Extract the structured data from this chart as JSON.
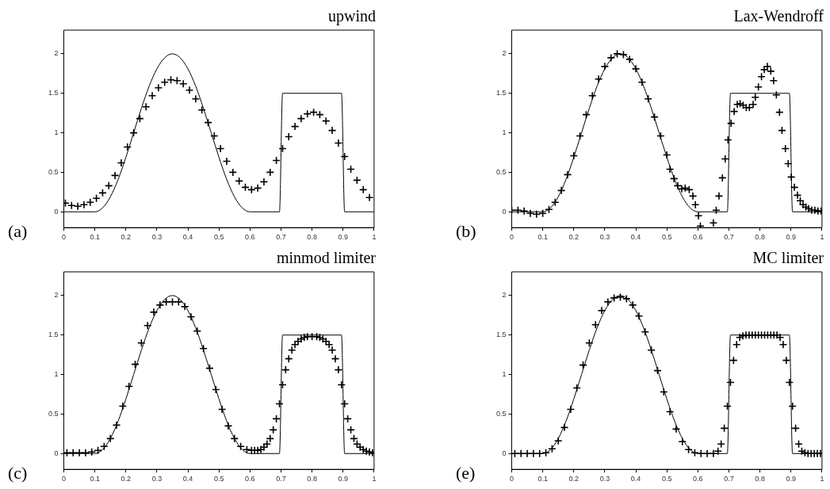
{
  "chart_data": [
    {
      "type": "scatter",
      "title": "upwind",
      "annotations": [
        "(a)"
      ],
      "xlim": [
        0,
        1
      ],
      "ylim": [
        -0.2,
        2.3
      ],
      "xticks": [
        0,
        0.1,
        0.2,
        0.3,
        0.4,
        0.5,
        0.6,
        0.7,
        0.8,
        0.9,
        1
      ],
      "yticks": [
        0,
        0.5,
        1,
        1.5,
        2
      ],
      "series": [
        {
          "type": "line",
          "marker": "none",
          "color": "#000000",
          "x": [
            0,
            0.1,
            0.125,
            0.15,
            0.175,
            0.2,
            0.225,
            0.25,
            0.275,
            0.3,
            0.325,
            0.35,
            0.375,
            0.4,
            0.425,
            0.45,
            0.475,
            0.5,
            0.525,
            0.55,
            0.575,
            0.6,
            0.695,
            0.705,
            0.895,
            0.905,
            1
          ],
          "values": [
            0,
            0,
            0.05,
            0.19,
            0.41,
            0.69,
            1.0,
            1.31,
            1.59,
            1.81,
            1.95,
            2.0,
            1.95,
            1.81,
            1.59,
            1.31,
            1.0,
            0.69,
            0.41,
            0.19,
            0.05,
            0,
            0,
            1.5,
            1.5,
            0,
            0
          ]
        },
        {
          "type": "scatter",
          "marker": "cross",
          "color": "#000000",
          "x": [
            0.005,
            0.025,
            0.045,
            0.065,
            0.085,
            0.105,
            0.125,
            0.145,
            0.165,
            0.185,
            0.205,
            0.225,
            0.245,
            0.265,
            0.285,
            0.305,
            0.325,
            0.345,
            0.365,
            0.385,
            0.405,
            0.425,
            0.445,
            0.465,
            0.485,
            0.505,
            0.525,
            0.545,
            0.565,
            0.585,
            0.605,
            0.625,
            0.645,
            0.665,
            0.685,
            0.705,
            0.725,
            0.745,
            0.765,
            0.785,
            0.805,
            0.825,
            0.845,
            0.865,
            0.885,
            0.905,
            0.925,
            0.945,
            0.965,
            0.985
          ],
          "values": [
            0.11,
            0.08,
            0.07,
            0.09,
            0.12,
            0.17,
            0.24,
            0.33,
            0.46,
            0.62,
            0.82,
            1.0,
            1.18,
            1.33,
            1.47,
            1.57,
            1.64,
            1.67,
            1.66,
            1.62,
            1.54,
            1.43,
            1.29,
            1.13,
            0.96,
            0.8,
            0.64,
            0.5,
            0.39,
            0.31,
            0.28,
            0.3,
            0.38,
            0.5,
            0.65,
            0.8,
            0.95,
            1.08,
            1.18,
            1.24,
            1.26,
            1.23,
            1.15,
            1.03,
            0.87,
            0.7,
            0.54,
            0.4,
            0.28,
            0.18
          ]
        }
      ]
    },
    {
      "type": "scatter",
      "title": "Lax-Wendroff",
      "annotations": [
        "(b)"
      ],
      "xlim": [
        0,
        1
      ],
      "ylim": [
        -0.2,
        2.3
      ],
      "xticks": [
        0,
        0.1,
        0.2,
        0.3,
        0.4,
        0.5,
        0.6,
        0.7,
        0.8,
        0.9,
        1
      ],
      "yticks": [
        0,
        0.5,
        1,
        1.5,
        2
      ],
      "series": [
        {
          "type": "line",
          "marker": "none",
          "color": "#000000",
          "x": [
            0,
            0.1,
            0.125,
            0.15,
            0.175,
            0.2,
            0.225,
            0.25,
            0.275,
            0.3,
            0.325,
            0.35,
            0.375,
            0.4,
            0.425,
            0.45,
            0.475,
            0.5,
            0.525,
            0.55,
            0.575,
            0.6,
            0.695,
            0.705,
            0.895,
            0.905,
            1
          ],
          "values": [
            0,
            0,
            0.05,
            0.19,
            0.41,
            0.69,
            1.0,
            1.31,
            1.59,
            1.81,
            1.95,
            2.0,
            1.95,
            1.81,
            1.59,
            1.31,
            1.0,
            0.69,
            0.41,
            0.19,
            0.05,
            0,
            0,
            1.5,
            1.5,
            0,
            0
          ]
        },
        {
          "type": "scatter",
          "marker": "cross",
          "color": "#000000",
          "x": [
            0,
            0.02,
            0.04,
            0.06,
            0.08,
            0.1,
            0.12,
            0.14,
            0.16,
            0.18,
            0.2,
            0.22,
            0.24,
            0.26,
            0.28,
            0.3,
            0.32,
            0.34,
            0.36,
            0.38,
            0.4,
            0.42,
            0.44,
            0.46,
            0.48,
            0.5,
            0.51,
            0.523,
            0.535,
            0.548,
            0.559,
            0.572,
            0.584,
            0.592,
            0.602,
            0.608,
            0.65,
            0.659,
            0.668,
            0.679,
            0.688,
            0.697,
            0.707,
            0.717,
            0.727,
            0.736,
            0.746,
            0.756,
            0.766,
            0.778,
            0.785,
            0.795,
            0.805,
            0.814,
            0.824,
            0.835,
            0.844,
            0.853,
            0.863,
            0.871,
            0.882,
            0.891,
            0.901,
            0.911,
            0.921,
            0.93,
            0.939,
            0.948,
            0.957,
            0.967,
            0.977,
            0.987,
            0.997
          ],
          "values": [
            0.02,
            0.02,
            0.01,
            -0.02,
            -0.03,
            -0.02,
            0.03,
            0.12,
            0.27,
            0.47,
            0.71,
            0.96,
            1.23,
            1.47,
            1.68,
            1.84,
            1.95,
            2.0,
            1.99,
            1.93,
            1.81,
            1.64,
            1.43,
            1.2,
            0.96,
            0.72,
            0.54,
            0.42,
            0.33,
            0.29,
            0.3,
            0.28,
            0.2,
            0.09,
            -0.05,
            -0.18,
            -0.14,
            0.02,
            0.2,
            0.43,
            0.67,
            0.91,
            1.12,
            1.27,
            1.36,
            1.37,
            1.35,
            1.32,
            1.32,
            1.36,
            1.45,
            1.58,
            1.71,
            1.8,
            1.84,
            1.78,
            1.66,
            1.48,
            1.26,
            1.03,
            0.8,
            0.61,
            0.44,
            0.31,
            0.21,
            0.14,
            0.09,
            0.06,
            0.04,
            0.02,
            0.02,
            0.01,
            0.01
          ]
        }
      ]
    },
    {
      "type": "scatter",
      "title": "minmod limiter",
      "annotations": [
        "(c)"
      ],
      "xlim": [
        0,
        1
      ],
      "ylim": [
        -0.2,
        2.3
      ],
      "xticks": [
        0,
        0.1,
        0.2,
        0.3,
        0.4,
        0.5,
        0.6,
        0.7,
        0.8,
        0.9,
        1
      ],
      "yticks": [
        0,
        0.5,
        1,
        1.5,
        2
      ],
      "series": [
        {
          "type": "line",
          "marker": "none",
          "color": "#000000",
          "x": [
            0,
            0.1,
            0.125,
            0.15,
            0.175,
            0.2,
            0.225,
            0.25,
            0.275,
            0.3,
            0.325,
            0.35,
            0.375,
            0.4,
            0.425,
            0.45,
            0.475,
            0.5,
            0.525,
            0.55,
            0.575,
            0.6,
            0.695,
            0.705,
            0.895,
            0.905,
            1
          ],
          "values": [
            0,
            0,
            0.05,
            0.19,
            0.41,
            0.69,
            1.0,
            1.31,
            1.59,
            1.81,
            1.95,
            2.0,
            1.95,
            1.81,
            1.59,
            1.31,
            1.0,
            0.69,
            0.41,
            0.19,
            0.05,
            0,
            0,
            1.5,
            1.5,
            0,
            0
          ]
        },
        {
          "type": "scatter",
          "marker": "cross",
          "color": "#000000",
          "x": [
            0.01,
            0.03,
            0.05,
            0.07,
            0.09,
            0.11,
            0.13,
            0.15,
            0.17,
            0.19,
            0.21,
            0.23,
            0.25,
            0.27,
            0.29,
            0.31,
            0.33,
            0.35,
            0.37,
            0.39,
            0.41,
            0.43,
            0.45,
            0.47,
            0.49,
            0.51,
            0.53,
            0.55,
            0.57,
            0.59,
            0.605,
            0.615,
            0.625,
            0.635,
            0.645,
            0.655,
            0.665,
            0.675,
            0.685,
            0.695,
            0.705,
            0.715,
            0.725,
            0.735,
            0.745,
            0.755,
            0.765,
            0.775,
            0.785,
            0.8,
            0.815,
            0.825,
            0.835,
            0.845,
            0.855,
            0.865,
            0.875,
            0.885,
            0.895,
            0.905,
            0.915,
            0.925,
            0.935,
            0.945,
            0.955,
            0.965,
            0.975,
            0.985,
            0.995
          ],
          "values": [
            0.01,
            0.01,
            0.01,
            0.01,
            0.02,
            0.04,
            0.09,
            0.19,
            0.36,
            0.6,
            0.85,
            1.13,
            1.4,
            1.62,
            1.79,
            1.88,
            1.92,
            1.92,
            1.92,
            1.86,
            1.73,
            1.55,
            1.33,
            1.08,
            0.81,
            0.56,
            0.35,
            0.19,
            0.09,
            0.05,
            0.04,
            0.04,
            0.04,
            0.05,
            0.08,
            0.12,
            0.19,
            0.3,
            0.44,
            0.63,
            0.87,
            1.06,
            1.2,
            1.31,
            1.38,
            1.42,
            1.45,
            1.47,
            1.48,
            1.48,
            1.48,
            1.47,
            1.45,
            1.42,
            1.38,
            1.31,
            1.2,
            1.06,
            0.87,
            0.63,
            0.44,
            0.3,
            0.19,
            0.12,
            0.08,
            0.05,
            0.03,
            0.02,
            0.01
          ]
        }
      ]
    },
    {
      "type": "scatter",
      "title": "MC limiter",
      "annotations": [
        "(e)"
      ],
      "xlim": [
        0,
        1
      ],
      "ylim": [
        -0.2,
        2.3
      ],
      "xticks": [
        0,
        0.1,
        0.2,
        0.3,
        0.4,
        0.5,
        0.6,
        0.7,
        0.8,
        0.9,
        1
      ],
      "yticks": [
        0,
        0.5,
        1,
        1.5,
        2
      ],
      "series": [
        {
          "type": "line",
          "marker": "none",
          "color": "#000000",
          "x": [
            0,
            0.1,
            0.125,
            0.15,
            0.175,
            0.2,
            0.225,
            0.25,
            0.275,
            0.3,
            0.325,
            0.35,
            0.375,
            0.4,
            0.425,
            0.45,
            0.475,
            0.5,
            0.525,
            0.55,
            0.575,
            0.6,
            0.695,
            0.705,
            0.895,
            0.905,
            1
          ],
          "values": [
            0,
            0,
            0.05,
            0.19,
            0.41,
            0.69,
            1.0,
            1.31,
            1.59,
            1.81,
            1.95,
            2.0,
            1.95,
            1.81,
            1.59,
            1.31,
            1.0,
            0.69,
            0.41,
            0.19,
            0.05,
            0,
            0,
            1.5,
            1.5,
            0,
            0
          ]
        },
        {
          "type": "scatter",
          "marker": "cross",
          "color": "#000000",
          "x": [
            0.01,
            0.03,
            0.05,
            0.07,
            0.09,
            0.11,
            0.13,
            0.15,
            0.17,
            0.19,
            0.21,
            0.23,
            0.25,
            0.27,
            0.29,
            0.31,
            0.33,
            0.35,
            0.37,
            0.39,
            0.41,
            0.43,
            0.45,
            0.47,
            0.49,
            0.51,
            0.53,
            0.55,
            0.57,
            0.59,
            0.61,
            0.63,
            0.65,
            0.665,
            0.675,
            0.685,
            0.695,
            0.705,
            0.715,
            0.725,
            0.735,
            0.745,
            0.755,
            0.765,
            0.775,
            0.785,
            0.795,
            0.805,
            0.815,
            0.825,
            0.835,
            0.845,
            0.855,
            0.865,
            0.875,
            0.885,
            0.895,
            0.905,
            0.915,
            0.925,
            0.935,
            0.945,
            0.955,
            0.965,
            0.975,
            0.985,
            0.995
          ],
          "values": [
            0,
            0,
            0,
            0,
            0,
            0.01,
            0.06,
            0.16,
            0.33,
            0.56,
            0.83,
            1.12,
            1.4,
            1.63,
            1.81,
            1.92,
            1.97,
            1.98,
            1.96,
            1.88,
            1.74,
            1.54,
            1.31,
            1.05,
            0.78,
            0.53,
            0.31,
            0.15,
            0.05,
            0.01,
            0,
            0,
            0,
            0.03,
            0.12,
            0.32,
            0.6,
            0.9,
            1.18,
            1.38,
            1.47,
            1.49,
            1.5,
            1.5,
            1.5,
            1.5,
            1.5,
            1.5,
            1.5,
            1.5,
            1.5,
            1.5,
            1.5,
            1.47,
            1.38,
            1.18,
            0.9,
            0.6,
            0.32,
            0.12,
            0.03,
            0.01,
            0,
            0,
            0,
            0,
            0
          ]
        }
      ]
    }
  ]
}
